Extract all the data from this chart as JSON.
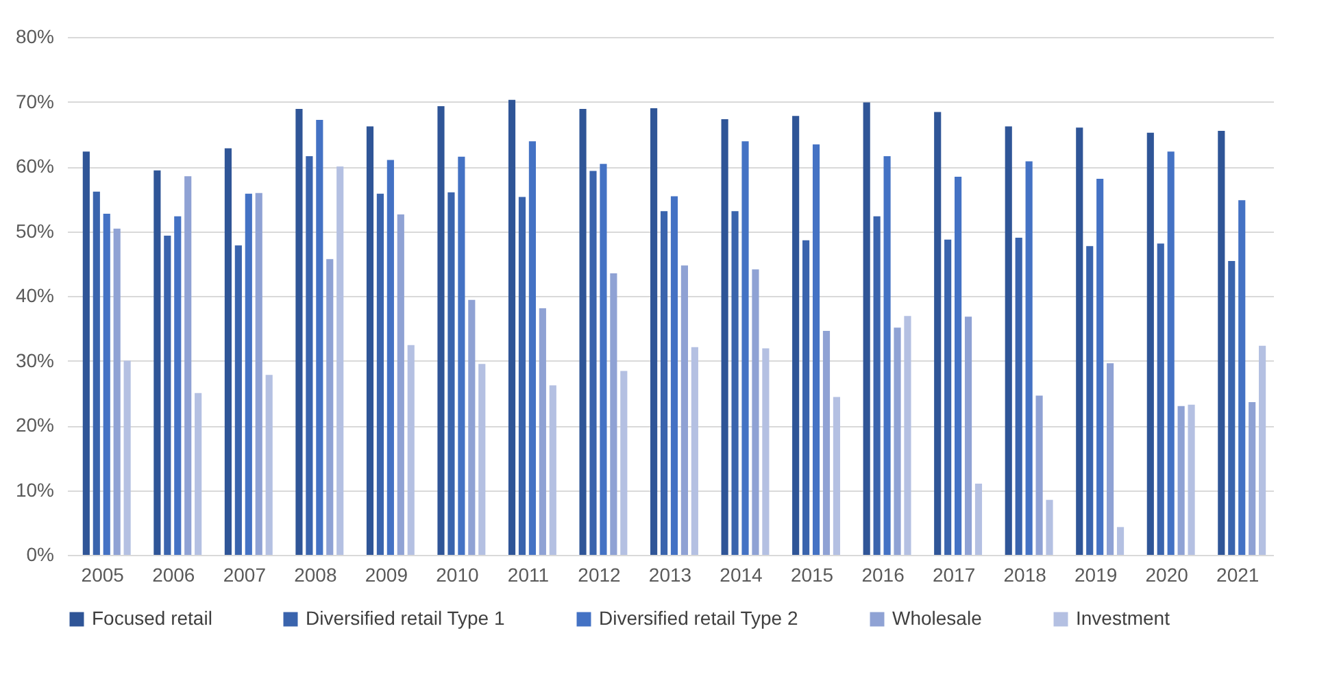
{
  "chart_data": {
    "type": "bar",
    "categories": [
      "2005",
      "2006",
      "2007",
      "2008",
      "2009",
      "2010",
      "2011",
      "2012",
      "2013",
      "2014",
      "2015",
      "2016",
      "2017",
      "2018",
      "2019",
      "2020",
      "2021"
    ],
    "series": [
      {
        "name": "Focused retail",
        "color": "#2f5597",
        "values": [
          62.3,
          59.4,
          62.8,
          68.9,
          66.2,
          69.3,
          70.3,
          68.9,
          69.0,
          67.3,
          67.8,
          69.9,
          68.4,
          66.2,
          66.0,
          65.2,
          65.5
        ]
      },
      {
        "name": "Diversified retail Type 1",
        "color": "#3a64ad",
        "values": [
          56.1,
          49.3,
          47.8,
          61.6,
          55.8,
          56.0,
          55.3,
          59.3,
          53.1,
          53.1,
          48.6,
          52.3,
          48.7,
          49.0,
          47.7,
          48.1,
          45.4
        ]
      },
      {
        "name": "Diversified retail Type 2",
        "color": "#4472c4",
        "values": [
          52.7,
          52.3,
          55.8,
          67.2,
          61.0,
          61.5,
          63.9,
          60.4,
          55.4,
          63.9,
          63.4,
          61.6,
          58.4,
          60.8,
          58.1,
          62.3,
          54.8
        ]
      },
      {
        "name": "Wholesale",
        "color": "#8fa2d4",
        "values": [
          50.4,
          58.5,
          55.9,
          45.7,
          52.6,
          39.4,
          38.1,
          43.5,
          44.7,
          44.1,
          34.6,
          35.1,
          36.8,
          24.6,
          29.6,
          23.0,
          23.6
        ]
      },
      {
        "name": "Investment",
        "color": "#b4c0e2",
        "values": [
          30.0,
          25.0,
          27.8,
          60.0,
          32.4,
          29.5,
          26.2,
          28.4,
          32.1,
          31.9,
          24.4,
          36.9,
          11.0,
          8.5,
          4.3,
          23.2,
          32.3
        ]
      }
    ],
    "ylim": [
      0,
      80
    ],
    "yticks": [
      {
        "value": 0,
        "label": "0%"
      },
      {
        "value": 10,
        "label": "10%"
      },
      {
        "value": 20,
        "label": "20%"
      },
      {
        "value": 30,
        "label": "30%"
      },
      {
        "value": 40,
        "label": "40%"
      },
      {
        "value": 50,
        "label": "50%"
      },
      {
        "value": 60,
        "label": "60%"
      },
      {
        "value": 70,
        "label": "70%"
      },
      {
        "value": 80,
        "label": "80%"
      }
    ],
    "grid": "y",
    "legend": "bottom"
  }
}
